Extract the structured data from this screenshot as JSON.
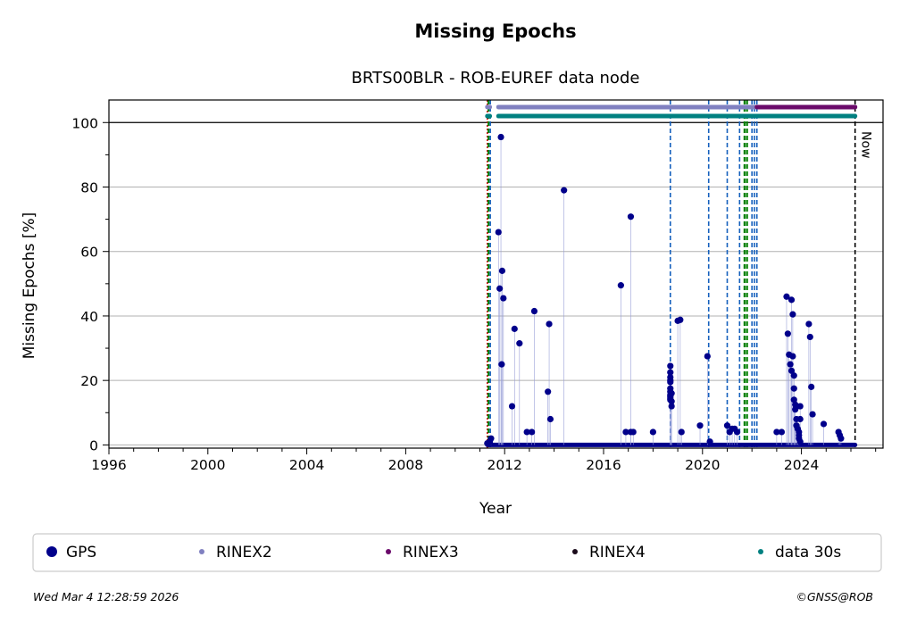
{
  "header": {
    "title": "Missing Epochs",
    "subtitle": "BRTS00BLR - ROB-EUREF data node"
  },
  "footer": {
    "timestamp": "Wed Mar  4 12:28:59 2026",
    "copyright": "©GNSS@ROB"
  },
  "now_label": "Now",
  "legend": [
    {
      "label": "GPS",
      "color": "#00008b",
      "marker": "large-dot"
    },
    {
      "label": "RINEX2",
      "color": "#8080c0",
      "marker": "small-dot"
    },
    {
      "label": "RINEX3",
      "color": "#6a0a6a",
      "marker": "small-dot"
    },
    {
      "label": "RINEX4",
      "color": "#1a0a1a",
      "marker": "small-dot"
    },
    {
      "label": "data 30s",
      "color": "#008080",
      "marker": "small-dot"
    }
  ],
  "chart_data": {
    "type": "scatter",
    "title": "Missing Epochs",
    "subtitle": "BRTS00BLR - ROB-EUREF data node",
    "xlabel": "Year",
    "ylabel": "Missing Epochs [%]",
    "xlim": [
      1996,
      2027.3
    ],
    "ylim": [
      -1,
      107
    ],
    "xticks": [
      1996,
      2000,
      2004,
      2008,
      2012,
      2016,
      2020,
      2024
    ],
    "yticks": [
      0,
      20,
      40,
      60,
      80,
      100
    ],
    "grid": "horizontal",
    "legend_position": "bottom",
    "series": [
      {
        "name": "GPS",
        "color": "#00008b",
        "x": [
          2011.3,
          2011.4,
          2011.45,
          2011.85,
          2011.75,
          2011.9,
          2011.8,
          2011.95,
          2011.88,
          2012.4,
          2012.6,
          2012.9,
          2012.3,
          2013.2,
          2013.1,
          2013.8,
          2013.75,
          2013.85,
          2014.4,
          2016.7,
          2016.9,
          2017.1,
          2017.2,
          2017.1,
          2018.0,
          2018.7,
          2018.7,
          2018.7,
          2018.7,
          2018.7,
          2018.7,
          2018.7,
          2018.7,
          2018.7,
          2018.7,
          2018.7,
          2018.75,
          2018.75,
          2018.75,
          2019.0,
          2019.1,
          2019.15,
          2019.9,
          2020.2,
          2020.3,
          2021.0,
          2021.1,
          2021.2,
          2021.3,
          2021.4,
          2023.0,
          2023.2,
          2023.4,
          2023.45,
          2023.5,
          2023.55,
          2023.6,
          2023.6,
          2023.65,
          2023.65,
          2023.7,
          2023.7,
          2023.7,
          2023.75,
          2023.75,
          2023.8,
          2023.8,
          2023.85,
          2023.9,
          2023.9,
          2023.9,
          2023.95,
          2023.95,
          2023.95,
          2024.3,
          2024.35,
          2024.4,
          2024.45,
          2024.9,
          2025.5,
          2025.55,
          2025.6
        ],
        "y": [
          0.5,
          1,
          2,
          95.5,
          66,
          54,
          48.5,
          45.5,
          25,
          36,
          31.5,
          4,
          12,
          41.5,
          4,
          37.5,
          16.5,
          8,
          79,
          49.5,
          4,
          70.8,
          4,
          4,
          4,
          24.5,
          22.5,
          21,
          20,
          19.5,
          17.5,
          16.5,
          15.5,
          15,
          14.5,
          14,
          13.5,
          12,
          16,
          38.5,
          38.8,
          4,
          6,
          27.5,
          1,
          6,
          4,
          5,
          5,
          4,
          4,
          4,
          46,
          34.5,
          28,
          25,
          23,
          45,
          40.5,
          27.5,
          21.5,
          17.5,
          14,
          12.5,
          11,
          8,
          6,
          5,
          4,
          3,
          2,
          12,
          8,
          1,
          37.5,
          33.5,
          18,
          9.5,
          6.5,
          4,
          3,
          2
        ]
      },
      {
        "name": "RINEX2",
        "color": "#8080c0",
        "segments": [
          [
            2011.3,
            2011.4
          ],
          [
            2011.75,
            2022.2
          ]
        ]
      },
      {
        "name": "RINEX3",
        "color": "#6a0a6a",
        "segments": [
          [
            2022.2,
            2026.17
          ]
        ]
      },
      {
        "name": "data 30s",
        "color": "#008080",
        "segments": [
          [
            2011.3,
            2011.4
          ],
          [
            2011.75,
            2026.17
          ]
        ]
      }
    ],
    "vlines": [
      {
        "x": 2011.3,
        "color": "#cc0000",
        "style": "dotted"
      },
      {
        "x": 2011.35,
        "color": "#008000",
        "style": "dashed"
      },
      {
        "x": 2011.42,
        "color": "#1560bd",
        "style": "dashed"
      },
      {
        "x": 2018.7,
        "color": "#1560bd",
        "style": "dashed"
      },
      {
        "x": 2020.25,
        "color": "#1560bd",
        "style": "dashed"
      },
      {
        "x": 2021.0,
        "color": "#1560bd",
        "style": "dashed"
      },
      {
        "x": 2021.5,
        "color": "#1560bd",
        "style": "dashed"
      },
      {
        "x": 2021.7,
        "color": "#008000",
        "style": "dashed"
      },
      {
        "x": 2021.8,
        "color": "#008000",
        "style": "dashed"
      },
      {
        "x": 2022.0,
        "color": "#1560bd",
        "style": "dashed"
      },
      {
        "x": 2022.1,
        "color": "#1560bd",
        "style": "dashed"
      },
      {
        "x": 2022.2,
        "color": "#1560bd",
        "style": "dashed"
      },
      {
        "x": 2026.17,
        "color": "#000000",
        "style": "dashed",
        "label": "Now"
      }
    ],
    "baseline_range": [
      2011.3,
      2026.17
    ]
  }
}
